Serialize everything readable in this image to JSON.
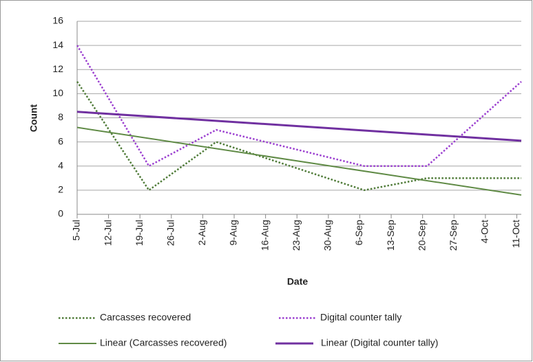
{
  "chart_data": {
    "type": "line",
    "x_label": "Date",
    "y_label": "Count",
    "xlim": [
      "5-Jul",
      "12-Oct"
    ],
    "xticks": [
      "5-Jul",
      "12-Jul",
      "19-Jul",
      "26-Jul",
      "2-Aug",
      "9-Aug",
      "16-Aug",
      "23-Aug",
      "30-Aug",
      "6-Sep",
      "13-Sep",
      "20-Sep",
      "27-Sep",
      "4-Oct",
      "11-Oct"
    ],
    "ylim": [
      0,
      16
    ],
    "yticks": [
      0,
      2,
      4,
      6,
      8,
      10,
      12,
      14,
      16
    ],
    "grid": true,
    "series": [
      {
        "name": "Carcasses recovered",
        "color": "#4f7b38",
        "dash": "dotted",
        "x": [
          "5-Jul",
          "21-Jul",
          "5-Aug",
          "7-Sep",
          "21-Sep",
          "12-Oct"
        ],
        "values": [
          11,
          2,
          6,
          2,
          3,
          3
        ]
      },
      {
        "name": "Digital counter tally",
        "color": "#9b3fd0",
        "dash": "dotted",
        "x": [
          "5-Jul",
          "21-Jul",
          "5-Aug",
          "7-Sep",
          "21-Sep",
          "12-Oct"
        ],
        "values": [
          14,
          4,
          7,
          4,
          4,
          11
        ]
      },
      {
        "name": "Linear (Carcasses recovered)",
        "color": "#5f8a45",
        "dash": "solid",
        "x": [
          "5-Jul",
          "12-Oct"
        ],
        "values": [
          7.2,
          1.6
        ]
      },
      {
        "name": "Linear (Digital counter tally)",
        "color": "#7030a0",
        "dash": "solid",
        "x": [
          "5-Jul",
          "12-Oct"
        ],
        "values": [
          8.5,
          6.1
        ]
      }
    ]
  }
}
